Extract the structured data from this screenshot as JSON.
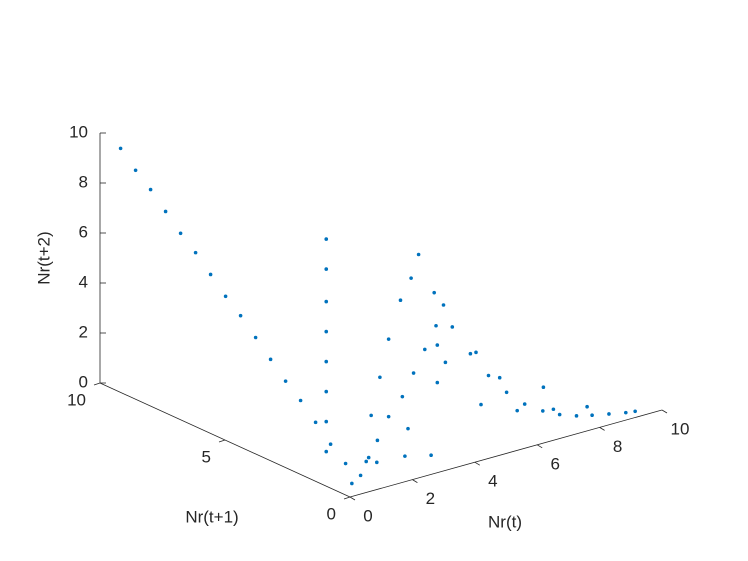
{
  "chart_data": {
    "type": "scatter3d",
    "color": "#0072bd",
    "xlabel": "Nr(t)",
    "ylabel": "Nr(t+1)",
    "zlabel": "Nr(t+2)",
    "xlim": [
      0,
      10
    ],
    "ylim": [
      0,
      10
    ],
    "zlim": [
      0,
      10
    ],
    "xticks": [
      0,
      2,
      4,
      6,
      8,
      10
    ],
    "yticks": [
      0,
      5,
      10
    ],
    "zticks": [
      0,
      2,
      4,
      6,
      8,
      10
    ],
    "x": [
      0.5,
      0.5,
      0.5,
      0.5,
      0.5,
      0.5,
      0.5,
      0.5,
      0.5,
      0.5,
      0.5,
      0.5,
      0.5,
      0.5,
      0.5,
      0.5,
      0.2,
      0.2,
      0.2,
      0.2,
      0.2,
      0.2,
      0.2,
      0.2,
      3,
      2.8,
      3.5,
      4,
      4.5,
      5,
      5.5,
      6,
      6.5,
      7,
      7.5,
      8,
      8.5,
      9,
      9.3,
      2.5,
      2.2,
      2,
      1.8,
      1,
      1.6,
      2.2,
      2.8,
      3.4,
      4,
      4.6,
      5,
      0.3,
      0.5,
      1,
      1.5,
      2,
      3,
      2.5,
      4,
      5,
      6,
      7,
      8,
      4,
      4.5,
      5,
      6,
      7
    ],
    "y": [
      9.8,
      9.2,
      8.6,
      8,
      7.4,
      6.8,
      6.2,
      5.6,
      5,
      4.4,
      3.8,
      3.2,
      2.6,
      2,
      1.4,
      0.8,
      1.2,
      1.2,
      1.2,
      1.2,
      1.2,
      1.2,
      1.2,
      1.2,
      1,
      1.05,
      1,
      0.9,
      0.8,
      0.7,
      0.6,
      0.5,
      0.4,
      0.35,
      0.3,
      0.3,
      0.25,
      0.2,
      0.2,
      1.1,
      1.2,
      1.3,
      1.4,
      0.6,
      0.9,
      1.2,
      1.4,
      1.7,
      2,
      2.3,
      2.5,
      0.3,
      0.2,
      0.5,
      0.8,
      0.3,
      0.5,
      0.8,
      1.5,
      1,
      0.8,
      0.6,
      0.5,
      1.5,
      1.8,
      1.2,
      1.5,
      1
    ],
    "z": [
      9.3,
      8.7,
      8.2,
      7.6,
      7,
      6.5,
      5.9,
      5.3,
      4.8,
      4.2,
      3.6,
      3,
      2.5,
      1.9,
      1.3,
      0.8,
      9.7,
      8.5,
      7.2,
      6,
      4.8,
      3.6,
      2.4,
      1.2,
      8.2,
      7.3,
      6.5,
      5,
      3.8,
      2.8,
      2,
      1.4,
      1,
      0.7,
      0.5,
      0.35,
      0.25,
      0.15,
      0.1,
      6.5,
      5,
      3.5,
      2,
      0.8,
      1.3,
      1.9,
      2.4,
      3,
      3.6,
      4.2,
      4.8,
      0.3,
      0.6,
      1,
      0.5,
      0.8,
      0.4,
      1.5,
      2.5,
      1.5,
      1,
      0.8,
      0.6,
      4,
      3,
      3.5,
      2,
      1.5
    ]
  }
}
